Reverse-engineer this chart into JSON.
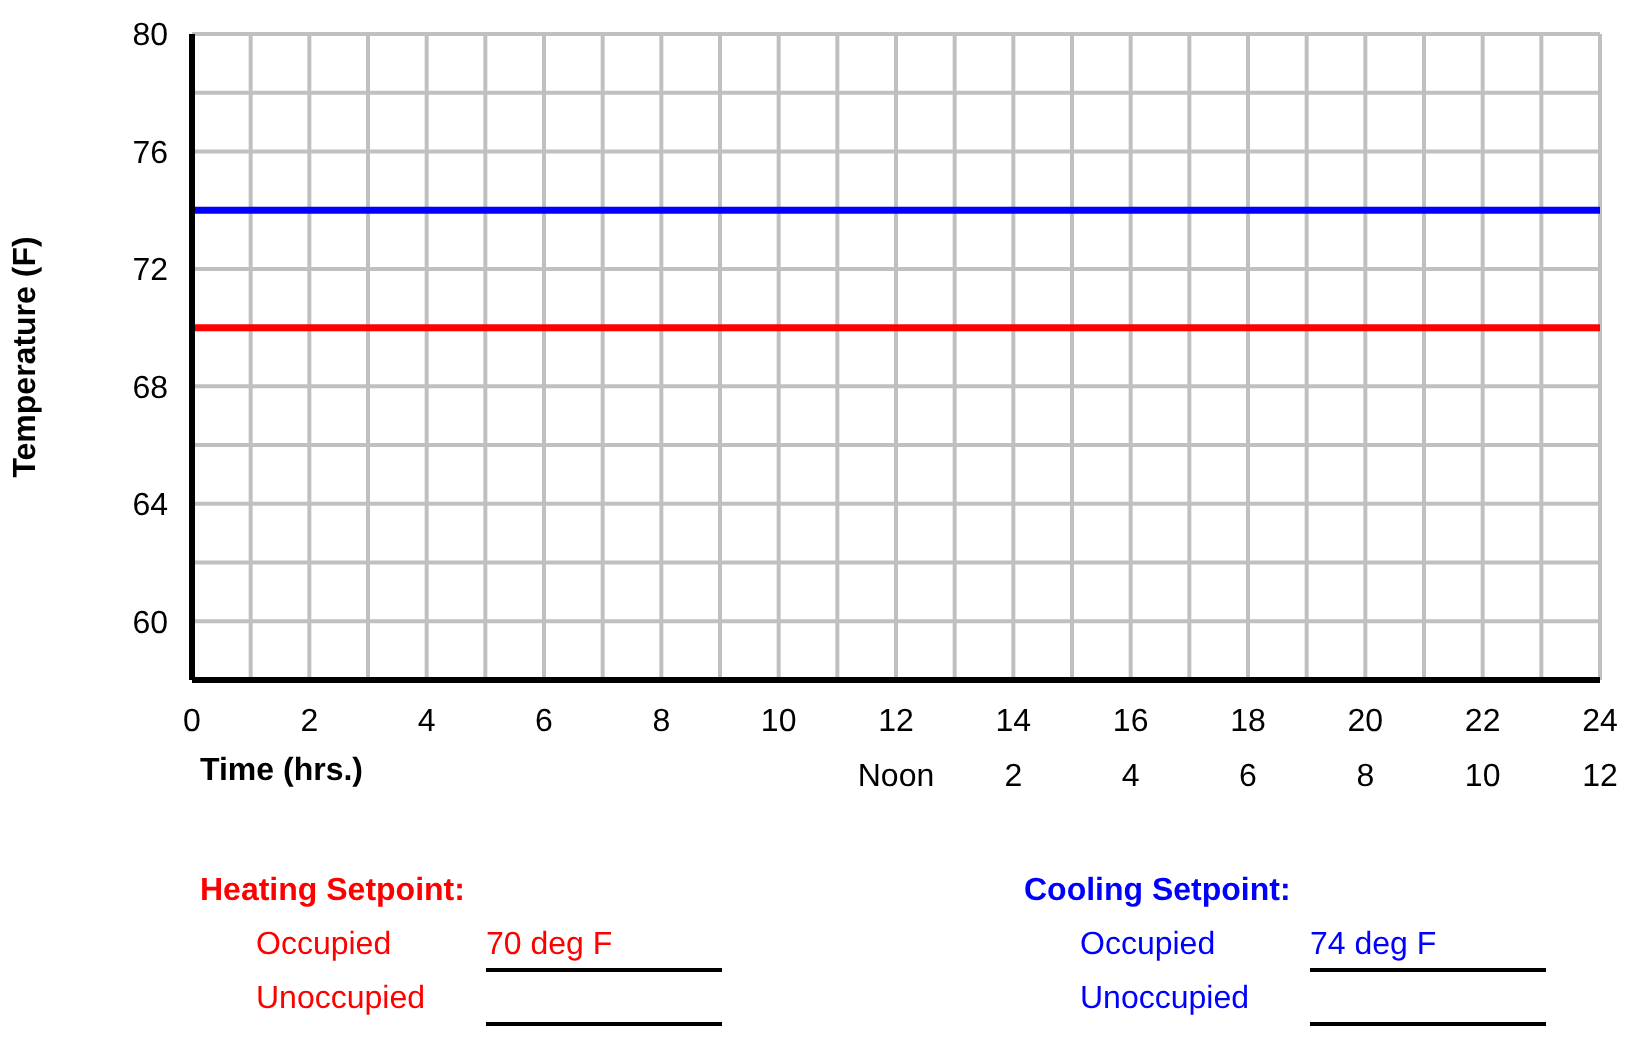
{
  "chart_data": {
    "type": "line",
    "xlabel": "Time (hrs.)",
    "ylabel": "Temperature (F)",
    "x": [
      0,
      24
    ],
    "series": [
      {
        "name": "Heating Setpoint:",
        "color": "#ff0000",
        "values": [
          70,
          70
        ]
      },
      {
        "name": "Cooling Setpoint:",
        "color": "#0000ff",
        "values": [
          74,
          74
        ]
      }
    ],
    "xlim": [
      0,
      24
    ],
    "xticks": [
      0,
      {
        "value": 1,
        "label": null
      },
      2,
      {
        "value": 3,
        "label": null
      },
      4,
      {
        "value": 5,
        "label": null
      },
      6,
      {
        "value": 7,
        "label": null
      },
      8,
      {
        "value": 9,
        "label": null
      },
      10,
      {
        "value": 11,
        "label": null
      },
      12,
      {
        "value": 13,
        "label": null
      },
      14,
      {
        "value": 15,
        "label": null
      },
      16,
      {
        "value": 17,
        "label": null
      },
      18,
      {
        "value": 19,
        "label": null
      },
      20,
      {
        "value": 21,
        "label": null
      },
      22,
      {
        "value": 23,
        "label": null
      },
      24
    ],
    "x2lim": [
      -12,
      12
    ],
    "x2ticks": [
      {
        "value": 0,
        "label": "Noon"
      },
      2,
      4,
      6,
      8,
      10,
      12
    ],
    "ylim": [
      58,
      80
    ],
    "yticks": [
      {
        "value": 58,
        "label": null
      },
      60,
      {
        "value": 62,
        "label": null
      },
      64,
      {
        "value": 66,
        "label": null
      },
      68,
      {
        "value": 70,
        "label": null
      },
      72,
      {
        "value": 74,
        "label": null
      },
      76,
      {
        "value": 78,
        "label": null
      },
      80
    ],
    "grid": true,
    "legend": "bottom",
    "marker": "none",
    "line_style": "solid",
    "annotations": [
      "Occupied",
      "70 deg F",
      "Unoccupied",
      "Occupied",
      "74 deg F",
      "Unoccupied"
    ]
  }
}
